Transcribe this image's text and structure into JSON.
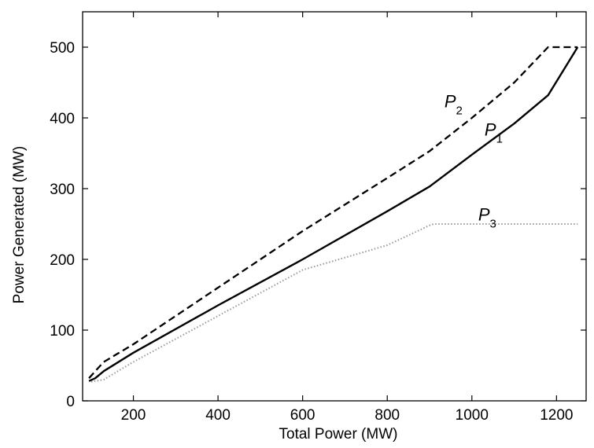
{
  "chart_data": {
    "type": "line",
    "xlabel": "Total Power (MW)",
    "ylabel": "Power Generated (MW)",
    "xlim": [
      80,
      1270
    ],
    "ylim": [
      0,
      550
    ],
    "xticks": [
      200,
      400,
      600,
      800,
      1000,
      1200
    ],
    "yticks": [
      0,
      100,
      200,
      300,
      400,
      500
    ],
    "grid": false,
    "series": [
      {
        "name": "P1",
        "label_main": "P",
        "label_sub": "1",
        "style": "solid",
        "color": "#000000",
        "x": [
          95,
          110,
          130,
          200,
          400,
          600,
          800,
          900,
          1000,
          1100,
          1180,
          1250
        ],
        "y": [
          28,
          32,
          42,
          68,
          135,
          200,
          268,
          303,
          348,
          392,
          432,
          500
        ]
      },
      {
        "name": "P2",
        "label_main": "P",
        "label_sub": "2",
        "style": "dashed",
        "color": "#000000",
        "x": [
          95,
          110,
          130,
          200,
          400,
          600,
          800,
          900,
          1000,
          1100,
          1180,
          1250
        ],
        "y": [
          32,
          42,
          55,
          80,
          160,
          240,
          315,
          353,
          400,
          450,
          500,
          500
        ]
      },
      {
        "name": "P3",
        "label_main": "P",
        "label_sub": "3",
        "style": "dotted",
        "color": "#9a9a9a",
        "x": [
          100,
          130,
          200,
          400,
          600,
          800,
          900,
          910,
          1250
        ],
        "y": [
          27,
          30,
          55,
          120,
          185,
          220,
          248,
          250,
          250
        ]
      }
    ]
  }
}
